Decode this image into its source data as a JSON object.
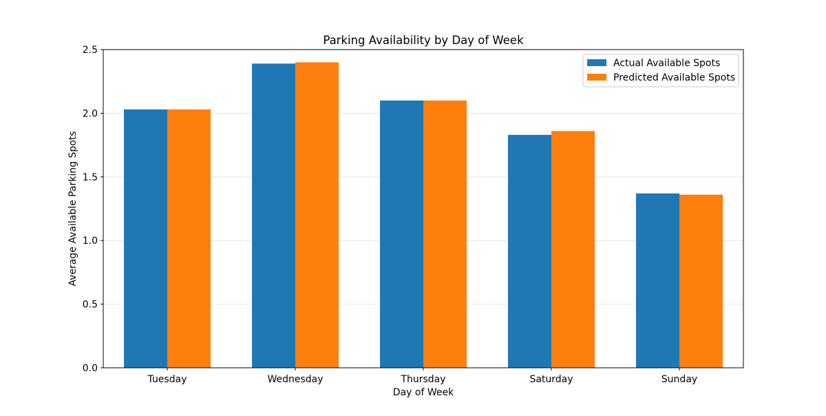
{
  "chart_data": {
    "type": "bar",
    "title": "Parking Availability by Day of Week",
    "xlabel": "Day of Week",
    "ylabel": "Average Available Parking Spots",
    "categories": [
      "Tuesday",
      "Wednesday",
      "Thursday",
      "Saturday",
      "Sunday"
    ],
    "series": [
      {
        "name": "Actual Available Spots",
        "color": "#1f77b4",
        "values": [
          2.03,
          2.39,
          2.1,
          1.83,
          1.37
        ]
      },
      {
        "name": "Predicted Available Spots",
        "color": "#ff7f0e",
        "values": [
          2.03,
          2.4,
          2.1,
          1.86,
          1.36
        ]
      }
    ],
    "ylim": [
      0,
      2.5
    ],
    "yticks": [
      0.0,
      0.5,
      1.0,
      1.5,
      2.0,
      2.5
    ],
    "ytick_labels": [
      "0.0",
      "0.5",
      "1.0",
      "1.5",
      "2.0",
      "2.5"
    ],
    "grid": "y",
    "legend_position": "top-right"
  }
}
